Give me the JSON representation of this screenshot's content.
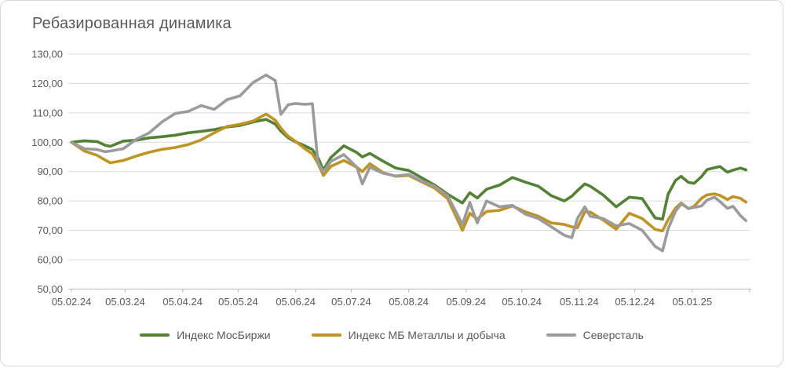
{
  "title": "Ребазированная динамика",
  "colors": {
    "moex_green": "#538135",
    "metals_gold": "#BF9426",
    "severstal_gray": "#9B9B9B",
    "gridline": "#D9D9D9",
    "axis_line": "#BFBFBF",
    "text": "#595959",
    "frame_border": "#D7D7D7",
    "background": "#FFFFFF"
  },
  "chart_data": {
    "type": "line",
    "title": "Ребазированная динамика",
    "xlabel": "",
    "ylabel": "",
    "ylim": [
      50,
      130
    ],
    "y_tick_step": 10,
    "grid": true,
    "legend_position": "bottom",
    "y_ticks": [
      {
        "label": "130,00",
        "value": 130
      },
      {
        "label": "120,00",
        "value": 120
      },
      {
        "label": "110,00",
        "value": 110
      },
      {
        "label": "100,00",
        "value": 100
      },
      {
        "label": "90,00",
        "value": 90
      },
      {
        "label": "80,00",
        "value": 80
      },
      {
        "label": "70,00",
        "value": 70
      },
      {
        "label": "60,00",
        "value": 60
      },
      {
        "label": "50,00",
        "value": 50
      }
    ],
    "x_total_days": 366,
    "x_month_ticks": [
      {
        "label": "05.02.24",
        "day": 0
      },
      {
        "label": "05.03.24",
        "day": 29
      },
      {
        "label": "05.04.24",
        "day": 60
      },
      {
        "label": "05.05.24",
        "day": 90
      },
      {
        "label": "05.06.24",
        "day": 121
      },
      {
        "label": "05.07.24",
        "day": 151
      },
      {
        "label": "05.08.24",
        "day": 182
      },
      {
        "label": "05.09.24",
        "day": 213
      },
      {
        "label": "05.10.24",
        "day": 243
      },
      {
        "label": "05.11.24",
        "day": 274
      },
      {
        "label": "05.12.24",
        "day": 304
      },
      {
        "label": "05.01.25",
        "day": 335
      }
    ],
    "x_days": [
      0,
      7,
      14,
      18,
      21,
      28,
      35,
      42,
      49,
      56,
      63,
      70,
      77,
      84,
      91,
      98,
      105,
      110,
      113,
      117,
      121,
      126,
      130,
      133,
      136,
      140,
      147,
      154,
      157,
      161,
      168,
      175,
      182,
      189,
      196,
      203,
      211,
      215,
      219,
      224,
      231,
      238,
      245,
      252,
      259,
      266,
      270,
      273,
      277,
      280,
      287,
      294,
      301,
      308,
      315,
      319,
      322,
      326,
      329,
      333,
      336,
      340,
      343,
      347,
      350,
      354,
      357,
      361,
      364
    ],
    "series": [
      {
        "name": "Индекс МосБиржи",
        "color": "#538135",
        "values": [
          100,
          100.5,
          100.2,
          99.0,
          98.6,
          100.4,
          100.7,
          101.5,
          101.9,
          102.4,
          103.2,
          103.7,
          104.3,
          105.2,
          105.7,
          106.9,
          107.8,
          106.2,
          103.8,
          101.5,
          100.1,
          98.8,
          97.5,
          94.8,
          90.5,
          94.8,
          98.8,
          96.5,
          95.0,
          96.2,
          93.6,
          91.2,
          90.4,
          87.9,
          85.4,
          82.3,
          79.3,
          82.8,
          81.0,
          84.0,
          85.4,
          88.0,
          86.4,
          85.0,
          81.8,
          80.0,
          81.6,
          83.5,
          85.8,
          85.0,
          82.0,
          78.0,
          81.3,
          80.8,
          74.2,
          73.8,
          82.3,
          87.0,
          88.4,
          86.3,
          86.0,
          88.3,
          90.7,
          91.3,
          91.7,
          89.8,
          90.5,
          91.2,
          90.6
        ]
      },
      {
        "name": "Индекс МБ Металлы и добыча",
        "color": "#BF9426",
        "values": [
          100,
          97.0,
          95.5,
          94.0,
          93.0,
          93.8,
          95.3,
          96.6,
          97.6,
          98.2,
          99.2,
          100.8,
          103.2,
          105.4,
          106.1,
          107.2,
          109.6,
          107.5,
          104.8,
          102.0,
          100.3,
          97.8,
          96.0,
          92.8,
          88.7,
          91.8,
          93.8,
          91.5,
          90.0,
          92.7,
          89.7,
          88.4,
          88.7,
          86.5,
          84.4,
          80.8,
          70.0,
          75.8,
          73.8,
          76.4,
          76.8,
          78.3,
          76.3,
          74.8,
          72.5,
          72.0,
          71.2,
          70.9,
          76.3,
          76.2,
          73.5,
          70.4,
          75.8,
          74.0,
          70.3,
          69.8,
          73.6,
          77.6,
          79.3,
          77.4,
          78.2,
          80.9,
          82.1,
          82.4,
          81.9,
          80.5,
          81.5,
          80.9,
          79.6
        ]
      },
      {
        "name": "Северсталь",
        "color": "#9B9B9B",
        "values": [
          100,
          97.8,
          97.5,
          96.8,
          97.0,
          97.8,
          101.0,
          103.2,
          107.0,
          109.8,
          110.5,
          112.5,
          111.2,
          114.5,
          115.8,
          120.3,
          122.9,
          121.0,
          109.5,
          112.8,
          113.2,
          112.9,
          113.1,
          93.2,
          89.9,
          93.5,
          95.8,
          91.5,
          85.8,
          91.5,
          89.5,
          88.5,
          89.0,
          86.8,
          85.0,
          81.8,
          72.0,
          79.5,
          72.5,
          80.0,
          78.0,
          78.5,
          75.5,
          74.0,
          71.2,
          68.3,
          67.5,
          74.0,
          78.0,
          74.8,
          74.0,
          71.5,
          72.3,
          70.0,
          64.5,
          63.0,
          70.5,
          76.5,
          79.0,
          77.5,
          77.8,
          78.3,
          80.3,
          81.3,
          79.8,
          77.5,
          78.2,
          75.0,
          73.3
        ]
      }
    ]
  }
}
